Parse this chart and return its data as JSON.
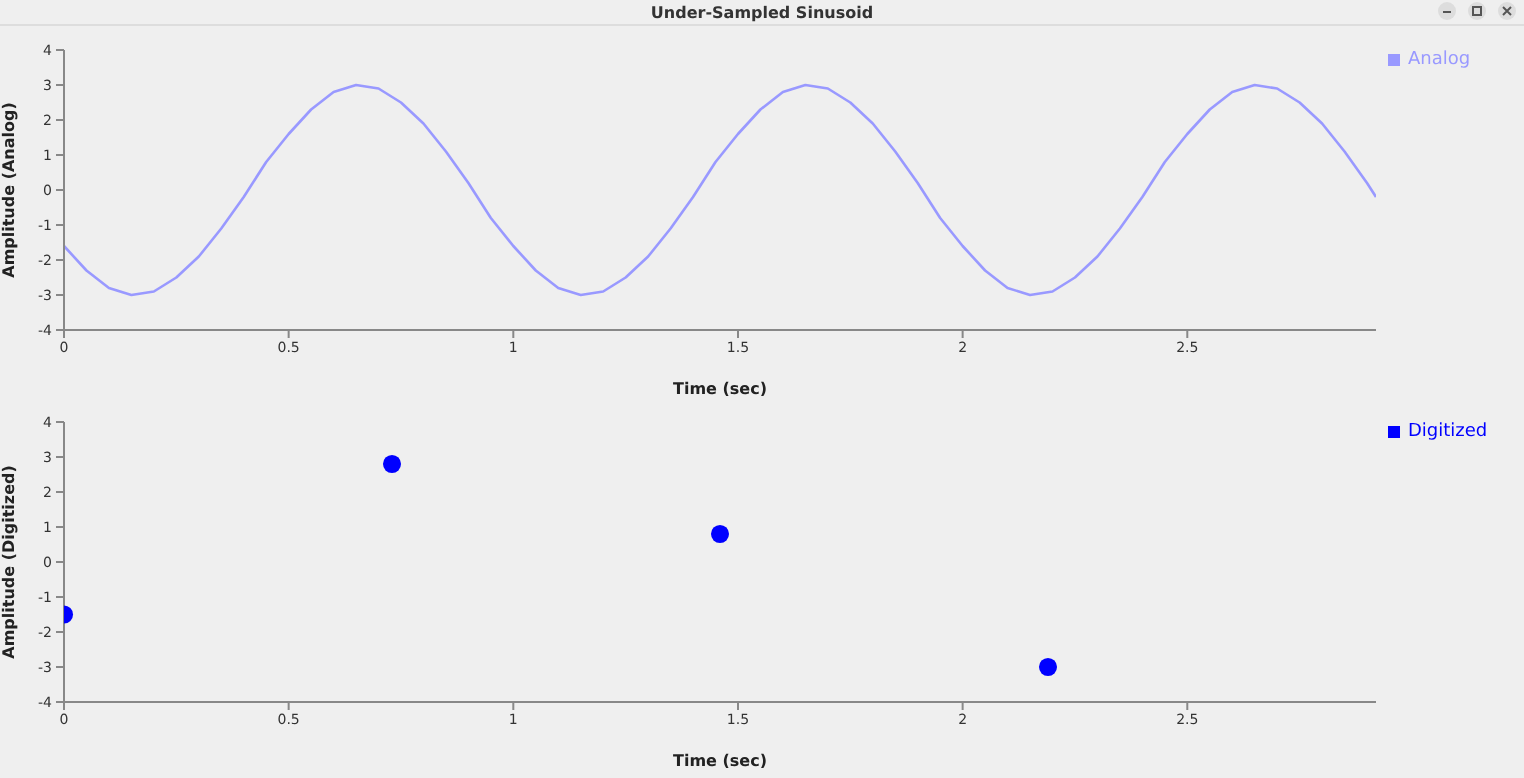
{
  "chart_data": [
    {
      "type": "line",
      "title": "Under-Sampled Sinusoid",
      "xlabel": "Time (sec)",
      "ylabel": "Amplitude (Analog)",
      "xlim": [
        0,
        2.92
      ],
      "ylim": [
        -4,
        4
      ],
      "xticks": [
        0,
        0.5,
        1,
        1.5,
        2,
        2.5
      ],
      "yticks": [
        -4,
        -3,
        -2,
        -1,
        0,
        1,
        2,
        3,
        4
      ],
      "grid": false,
      "legend": "top right",
      "marker": "none",
      "line_style": "solid",
      "series": [
        {
          "name": "Analog",
          "color": "#9999ff",
          "x": [
            0,
            0.05,
            0.1,
            0.15,
            0.2,
            0.25,
            0.3,
            0.35,
            0.4,
            0.45,
            0.5,
            0.55,
            0.6,
            0.65,
            0.7,
            0.75,
            0.8,
            0.85,
            0.9,
            0.95,
            1,
            1.05,
            1.1,
            1.15,
            1.2,
            1.25,
            1.3,
            1.35,
            1.4,
            1.45,
            1.5,
            1.55,
            1.6,
            1.65,
            1.7,
            1.75,
            1.8,
            1.85,
            1.9,
            1.95,
            2,
            2.05,
            2.1,
            2.15,
            2.2,
            2.25,
            2.3,
            2.35,
            2.4,
            2.45,
            2.5,
            2.55,
            2.6,
            2.65,
            2.7,
            2.75,
            2.8,
            2.85,
            2.9,
            2.92
          ],
          "values": [
            -1.6,
            -2.3,
            -2.8,
            -3,
            -2.9,
            -2.5,
            -1.9,
            -1.1,
            -0.2,
            0.8,
            1.6,
            2.3,
            2.8,
            3,
            2.9,
            2.5,
            1.9,
            1.1,
            0.2,
            -0.8,
            -1.6,
            -2.3,
            -2.8,
            -3,
            -2.9,
            -2.5,
            -1.9,
            -1.1,
            -0.2,
            0.8,
            1.6,
            2.3,
            2.8,
            3,
            2.9,
            2.5,
            1.9,
            1.1,
            0.2,
            -0.8,
            -1.6,
            -2.3,
            -2.8,
            -3,
            -2.9,
            -2.5,
            -1.9,
            -1.1,
            -0.2,
            0.8,
            1.6,
            2.3,
            2.8,
            3,
            2.9,
            2.5,
            1.9,
            1.1,
            0.2,
            -0.2
          ]
        }
      ]
    },
    {
      "type": "scatter",
      "xlabel": "Time (sec)",
      "ylabel": "Amplitude (Digitized)",
      "xlim": [
        0,
        2.92
      ],
      "ylim": [
        -4,
        4
      ],
      "xticks": [
        0,
        0.5,
        1,
        1.5,
        2,
        2.5
      ],
      "yticks": [
        -4,
        -3,
        -2,
        -1,
        0,
        1,
        2,
        3,
        4
      ],
      "grid": false,
      "legend": "top right",
      "marker": "circle",
      "series": [
        {
          "name": "Digitized",
          "color": "#0000ff",
          "x": [
            0,
            0.73,
            1.46,
            2.19
          ],
          "values": [
            -1.5,
            2.8,
            0.8,
            -3.0
          ]
        }
      ]
    }
  ]
}
